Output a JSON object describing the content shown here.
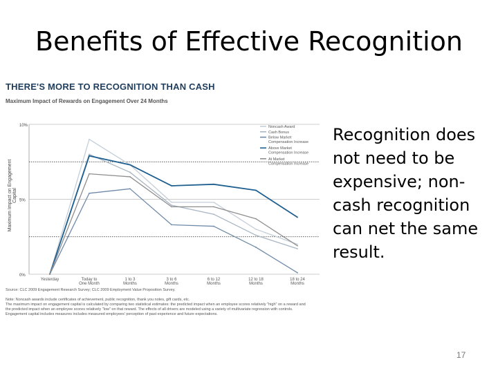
{
  "slide_title": "Benefits of Effective Recognition",
  "figure": {
    "title": "THERE'S MORE TO RECOGNITION THAN CASH",
    "subtitle": "Maximum Impact of Rewards on Engagement Over 24 Months",
    "ylabel": "Maximum Impact on Engagement Capital",
    "notes": [
      "Source: CLC 2009 Engagement Research Survey; CLC 2009 Employment Value Proposition Survey.",
      "Note: Noncash awards include certificates of achievement, public recognition, thank you notes, gift cards, etc.",
      "The maximum impact on engagement capital is calculated by comparing two statistical estimates: the predicted impact when an employee scores relatively \"high\" on a reward and",
      "the predicted impact when an employee scores relatively \"low\" on that reward. The effects of all drivers are modeled using a variety of multivariate regression with controls.",
      "Engagement capital includes measures includes measured employees' perception of past experience and future expectations."
    ]
  },
  "side_text": "Recognition does not need to be expensive; non-cash recognition can net the same result.",
  "page_number": "17",
  "chart_data": {
    "type": "line",
    "categories": [
      "Yesterday",
      "Today to One Month",
      "1 to 3 Months",
      "3 to 6 Months",
      "6 to 12 Months",
      "12 to 18 Months",
      "18 to 24 Months"
    ],
    "x_labels": [
      [
        "Yesterday"
      ],
      [
        "Today to",
        "One Month"
      ],
      [
        "1 to 3",
        "Months"
      ],
      [
        "3 to 6",
        "Months"
      ],
      [
        "6 to 12",
        "Months"
      ],
      [
        "12 to 18",
        "Months"
      ],
      [
        "18 to 24",
        "Months"
      ]
    ],
    "ylim": [
      0,
      10
    ],
    "yticks": [
      {
        "v": 0,
        "label": "0%"
      },
      {
        "v": 5,
        "label": "5%"
      },
      {
        "v": 10,
        "label": "10%"
      }
    ],
    "reference_lines": [
      7.5,
      2.5
    ],
    "grid": false,
    "legend_position": "right",
    "series": [
      {
        "name": "Noncash Award",
        "color": "#c5ced8",
        "values": [
          0,
          9.0,
          7.3,
          4.8,
          4.8,
          3.0,
          2.0
        ]
      },
      {
        "name": "Cash Bonus",
        "color": "#a8b6c4",
        "values": [
          0,
          8.0,
          6.8,
          4.6,
          4.0,
          2.6,
          1.7
        ]
      },
      {
        "name": "Below Market Compensation Increase",
        "color": "#6f8aa8",
        "values": [
          0,
          5.4,
          5.7,
          3.3,
          3.2,
          1.8,
          0.1
        ]
      },
      {
        "name": "Above Market Compensation Increase",
        "color": "#1f5f8f",
        "values": [
          0,
          7.9,
          7.3,
          5.9,
          6.0,
          5.6,
          3.8
        ]
      },
      {
        "name": "At Market Compensation Increase",
        "color": "#8e8e8e",
        "values": [
          0,
          6.7,
          6.5,
          4.5,
          4.5,
          3.7,
          1.9
        ]
      }
    ]
  }
}
